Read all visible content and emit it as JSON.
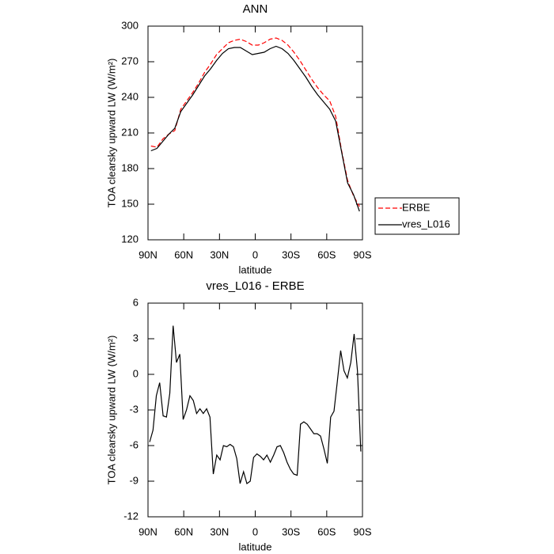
{
  "chart_data": [
    {
      "type": "line",
      "title": "ANN",
      "x_label": "latitude",
      "y_label": "TOA clearsky upward LW (W/m²)",
      "x": [
        87.5,
        82.5,
        77.5,
        72.5,
        67.5,
        62.5,
        57.5,
        52.5,
        47.5,
        42.5,
        37.5,
        32.5,
        27.5,
        22.5,
        17.5,
        12.5,
        7.5,
        2.5,
        -2.5,
        -7.5,
        -12.5,
        -17.5,
        -22.5,
        -27.5,
        -32.5,
        -37.5,
        -42.5,
        -47.5,
        -52.5,
        -57.5,
        -62.5,
        -67.5,
        -72.5,
        -77.5,
        -82.5,
        -87.5
      ],
      "series": [
        {
          "name": "ERBE",
          "color": "#ff0000",
          "dash": true,
          "values": [
            199,
            198,
            205,
            209,
            212,
            230,
            237,
            244,
            252,
            261,
            268,
            276,
            281,
            286,
            288,
            289,
            287,
            284,
            284,
            286,
            289,
            290,
            288,
            284,
            278,
            271,
            263,
            255,
            248,
            242,
            237,
            224,
            195,
            170,
            157,
            148
          ]
        },
        {
          "name": "vres_L016",
          "color": "#000000",
          "dash": false,
          "values": [
            195,
            197,
            203,
            209,
            214,
            228,
            235,
            242,
            250,
            258,
            264,
            271,
            277,
            281,
            282,
            282,
            279,
            276,
            277,
            278,
            281,
            283,
            281,
            277,
            271,
            264,
            257,
            249,
            242,
            236,
            230,
            220,
            194,
            168,
            158,
            144
          ]
        }
      ],
      "xlim": [
        90,
        -90
      ],
      "xticks": [
        {
          "value": 90,
          "label": "90N"
        },
        {
          "value": 60,
          "label": "60N"
        },
        {
          "value": 30,
          "label": "30N"
        },
        0,
        {
          "value": -30,
          "label": "30S"
        },
        {
          "value": -60,
          "label": "60S"
        },
        {
          "value": -90,
          "label": "90S"
        }
      ],
      "ylim": [
        120,
        300
      ],
      "yticks": [
        120,
        150,
        180,
        210,
        240,
        270,
        300
      ],
      "legend": "right"
    },
    {
      "type": "line",
      "title": "vres_L016 - ERBE",
      "x_label": "latitude",
      "y_label": "TOA clearsky upward LW (W/m²)",
      "x": [
        88.6,
        85.8,
        83.0,
        80.2,
        77.3,
        74.5,
        71.7,
        68.9,
        66.1,
        63.3,
        60.5,
        57.7,
        54.8,
        52.0,
        49.2,
        46.4,
        43.6,
        40.8,
        38.0,
        35.2,
        32.3,
        29.5,
        26.7,
        23.9,
        21.1,
        18.3,
        15.5,
        12.7,
        9.8,
        7.0,
        4.2,
        1.4,
        -1.4,
        -4.2,
        -7.0,
        -9.8,
        -12.7,
        -15.5,
        -18.3,
        -21.1,
        -23.9,
        -26.7,
        -29.5,
        -32.3,
        -35.2,
        -38.0,
        -40.8,
        -43.6,
        -46.4,
        -49.2,
        -52.0,
        -54.8,
        -57.7,
        -60.5,
        -63.3,
        -66.1,
        -68.9,
        -71.7,
        -74.5,
        -77.3,
        -80.2,
        -83.0,
        -85.8,
        -88.6
      ],
      "series": [
        {
          "name": "vres_L016 - ERBE",
          "color": "#000000",
          "dash": false,
          "values": [
            -5.7,
            -4.7,
            -1.8,
            -0.7,
            -3.5,
            -3.6,
            -1.6,
            4.1,
            1.0,
            1.7,
            -3.8,
            -3.0,
            -1.8,
            -2.2,
            -3.3,
            -2.9,
            -3.3,
            -2.9,
            -3.6,
            -8.4,
            -6.8,
            -7.2,
            -6.0,
            -6.1,
            -5.9,
            -6.1,
            -7.1,
            -9.2,
            -8.2,
            -9.2,
            -9.0,
            -7.0,
            -6.7,
            -6.9,
            -7.2,
            -6.8,
            -7.4,
            -6.8,
            -6.1,
            -6.0,
            -6.6,
            -7.4,
            -8.0,
            -8.4,
            -8.5,
            -4.2,
            -4.0,
            -4.2,
            -4.6,
            -5.0,
            -5.0,
            -5.2,
            -6.3,
            -7.5,
            -3.6,
            -3.1,
            -0.6,
            2.0,
            0.3,
            -0.3,
            1.0,
            3.4,
            0.3,
            -6.5
          ]
        }
      ],
      "xlim": [
        90,
        -90
      ],
      "xticks": [
        {
          "value": 90,
          "label": "90N"
        },
        {
          "value": 60,
          "label": "60N"
        },
        {
          "value": 30,
          "label": "30N"
        },
        0,
        {
          "value": -30,
          "label": "30S"
        },
        {
          "value": -60,
          "label": "60S"
        },
        {
          "value": -90,
          "label": "90S"
        }
      ],
      "ylim": [
        -12,
        6
      ],
      "yticks": [
        -12,
        -9,
        -6,
        -3,
        0,
        3,
        6
      ]
    }
  ]
}
